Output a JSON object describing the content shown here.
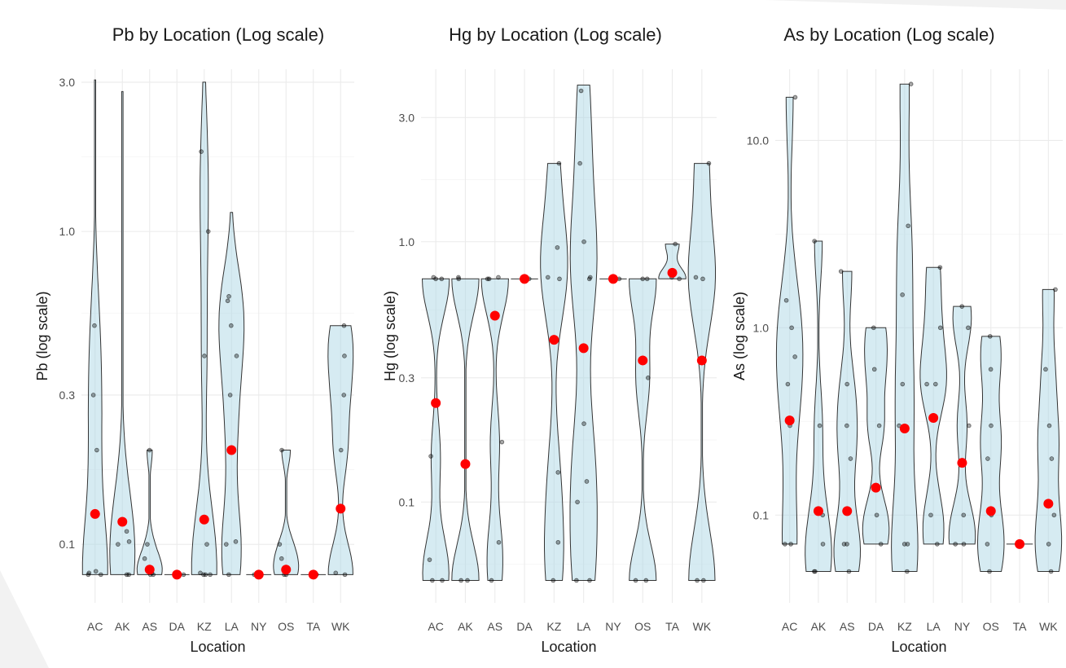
{
  "colors": {
    "violin_fill": "#add8e6",
    "mean_point": "#ff0000",
    "grid": "#ebebeb",
    "background": "#ffffff"
  },
  "chart_data": [
    {
      "type": "violin",
      "title": "Pb by Location (Log scale)",
      "xlabel": "Location",
      "ylabel": "Pb (log scale)",
      "yscale": "log10",
      "ylim": [
        0.065,
        3.3
      ],
      "yticks": [
        0.1,
        0.3,
        1.0,
        3.0
      ],
      "yticklabels": [
        "0.1",
        "0.3",
        "1.0",
        "3.0"
      ],
      "categories": [
        "AC",
        "AK",
        "AS",
        "DA",
        "KZ",
        "LA",
        "NY",
        "OS",
        "TA",
        "WK"
      ],
      "grid": true,
      "means": [
        0.125,
        0.118,
        0.083,
        0.08,
        0.12,
        0.2,
        0.08,
        0.083,
        0.08,
        0.13
      ],
      "ranges": [
        [
          0.08,
          3.05
        ],
        [
          0.08,
          2.8
        ],
        [
          0.08,
          0.2
        ],
        [
          0.08,
          0.08
        ],
        [
          0.08,
          3.0
        ],
        [
          0.08,
          1.15
        ],
        [
          0.08,
          0.08
        ],
        [
          0.08,
          0.2
        ],
        [
          0.08,
          0.08
        ],
        [
          0.08,
          0.5
        ]
      ],
      "points": [
        [
          0.08,
          0.08,
          0.081,
          0.082,
          0.3,
          0.5,
          0.2
        ],
        [
          0.08,
          0.08,
          0.1,
          0.102,
          0.11
        ],
        [
          0.08,
          0.08,
          0.081,
          0.082,
          0.09,
          0.1,
          0.2
        ],
        [
          0.08
        ],
        [
          0.08,
          0.08,
          0.08,
          0.081,
          0.1,
          1.0,
          1.8,
          0.4
        ],
        [
          0.08,
          0.1,
          0.102,
          0.2,
          0.3,
          0.4,
          0.5,
          0.6,
          0.62
        ],
        [
          0.08
        ],
        [
          0.08,
          0.08,
          0.09,
          0.1,
          0.2
        ],
        [
          0.08
        ],
        [
          0.08,
          0.081,
          0.2,
          0.3,
          0.4,
          0.5
        ]
      ]
    },
    {
      "type": "violin",
      "title": "Hg by Location (Log scale)",
      "xlabel": "Location",
      "ylabel": "Hg (log scale)",
      "yscale": "log10",
      "ylim": [
        0.041,
        4.6
      ],
      "yticks": [
        0.1,
        0.3,
        1.0,
        3.0
      ],
      "yticklabels": [
        "0.1",
        "0.3",
        "1.0",
        "3.0"
      ],
      "categories": [
        "AC",
        "AK",
        "AS",
        "DA",
        "KZ",
        "LA",
        "NY",
        "OS",
        "TA",
        "WK"
      ],
      "grid": true,
      "means": [
        0.24,
        0.14,
        0.52,
        0.72,
        0.42,
        0.39,
        0.72,
        0.35,
        0.76,
        0.35
      ],
      "ranges": [
        [
          0.05,
          0.72
        ],
        [
          0.05,
          0.72
        ],
        [
          0.05,
          0.72
        ],
        [
          0.72,
          0.72
        ],
        [
          0.05,
          2.0
        ],
        [
          0.05,
          4.0
        ],
        [
          0.72,
          0.72
        ],
        [
          0.05,
          0.72
        ],
        [
          0.72,
          0.98
        ],
        [
          0.05,
          2.0
        ]
      ],
      "points": [
        [
          0.05,
          0.05,
          0.06,
          0.15,
          0.72,
          0.72,
          0.73
        ],
        [
          0.05,
          0.05,
          0.72,
          0.73
        ],
        [
          0.05,
          0.07,
          0.17,
          0.72,
          0.72,
          0.73
        ],
        [
          0.72,
          0.72
        ],
        [
          0.05,
          0.07,
          0.13,
          0.72,
          0.73,
          0.95,
          2.0
        ],
        [
          0.05,
          0.05,
          0.1,
          0.12,
          0.2,
          0.72,
          0.73,
          1.0,
          2.0,
          3.8
        ],
        [
          0.72,
          0.72
        ],
        [
          0.05,
          0.05,
          0.3,
          0.72,
          0.72
        ],
        [
          0.72,
          0.73,
          0.98
        ],
        [
          0.05,
          0.05,
          0.72,
          0.73,
          2.0
        ]
      ]
    },
    {
      "type": "violin",
      "title": "As by Location (Log scale)",
      "xlabel": "Location",
      "ylabel": "As (log scale)",
      "yscale": "log10",
      "ylim": [
        0.034,
        24
      ],
      "yticks": [
        0.1,
        1.0,
        10.0
      ],
      "yticklabels": [
        "0.1",
        "1.0",
        "10.0"
      ],
      "categories": [
        "AC",
        "AK",
        "AS",
        "DA",
        "KZ",
        "LA",
        "NY",
        "OS",
        "TA",
        "WK"
      ],
      "grid": true,
      "means": [
        0.32,
        0.105,
        0.105,
        0.14,
        0.29,
        0.33,
        0.19,
        0.105,
        0.07,
        0.115
      ],
      "ranges": [
        [
          0.07,
          17
        ],
        [
          0.05,
          2.9
        ],
        [
          0.05,
          2.0
        ],
        [
          0.07,
          1.0
        ],
        [
          0.05,
          20
        ],
        [
          0.07,
          2.1
        ],
        [
          0.07,
          1.3
        ],
        [
          0.05,
          0.9
        ],
        [
          0.07,
          0.07
        ],
        [
          0.05,
          1.6
        ]
      ],
      "points": [
        [
          0.07,
          0.07,
          0.3,
          0.5,
          0.7,
          1.0,
          1.4,
          17
        ],
        [
          0.05,
          0.05,
          0.07,
          0.1,
          0.3,
          2.9
        ],
        [
          0.05,
          0.07,
          0.07,
          0.2,
          0.3,
          0.5,
          2.0
        ],
        [
          0.07,
          0.1,
          0.3,
          0.6,
          1.0
        ],
        [
          0.05,
          0.07,
          0.07,
          0.3,
          0.5,
          1.5,
          3.5,
          20
        ],
        [
          0.07,
          0.1,
          0.5,
          0.5,
          1.0,
          2.1
        ],
        [
          0.07,
          0.07,
          0.1,
          0.3,
          1.0,
          1.3
        ],
        [
          0.05,
          0.07,
          0.1,
          0.2,
          0.3,
          0.6,
          0.9
        ],
        [
          0.07
        ],
        [
          0.05,
          0.07,
          0.1,
          0.2,
          0.3,
          0.6,
          1.6
        ]
      ]
    }
  ]
}
